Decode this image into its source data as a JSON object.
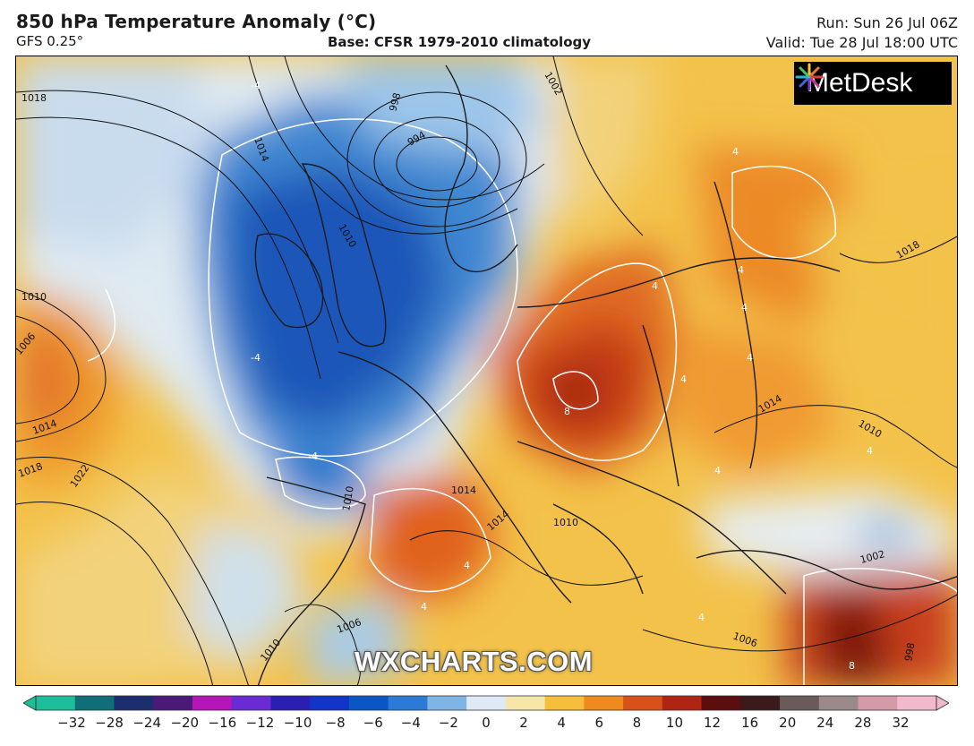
{
  "header": {
    "title": "850 hPa Temperature Anomaly (°C)",
    "model": "GFS 0.25°",
    "base": "Base: CFSR 1979-2010 climatology",
    "run": "Run: Sun 26 Jul 06Z",
    "valid": "Valid: Tue 28 Jul 18:00 UTC"
  },
  "logo": {
    "text": "MetDesk",
    "icon": "pinwheel-logo-icon"
  },
  "watermark": "WXCHARTS.COM",
  "isobar_labels": [
    "1018",
    "1014",
    "1010",
    "1006",
    "1014",
    "1018",
    "1022",
    "998",
    "994",
    "1002",
    "1010",
    "1018",
    "1014",
    "1010",
    "1014",
    "1010",
    "1014",
    "1010",
    "1006",
    "1010",
    "1006",
    "1002",
    "998"
  ],
  "anomaly_labels": [
    "-4",
    "4",
    "-4",
    "-4",
    "4",
    "4",
    "4",
    "4",
    "4",
    "8",
    "4",
    "4",
    "4",
    "4",
    "8",
    "4"
  ],
  "colorbar": {
    "ticks": [
      "−32",
      "−28",
      "−24",
      "−20",
      "−16",
      "−12",
      "−10",
      "−8",
      "−6",
      "−4",
      "−2",
      "0",
      "2",
      "4",
      "6",
      "8",
      "10",
      "12",
      "16",
      "20",
      "24",
      "28",
      "32"
    ],
    "colors": [
      "#1dbf9a",
      "#0f6e78",
      "#1c2e6e",
      "#4b1a78",
      "#b416b8",
      "#6a2bd4",
      "#2a1fb0",
      "#1234c8",
      "#0a56c4",
      "#2a7ad6",
      "#7fb4e6",
      "#dde9f4",
      "#f6e6a8",
      "#f5bf3c",
      "#ee8a1e",
      "#d8511a",
      "#b02414",
      "#5a0e0e",
      "#3a1a1a",
      "#6a5a5a",
      "#9a8a8a",
      "#d49aa8",
      "#f2b8cc"
    ]
  }
}
